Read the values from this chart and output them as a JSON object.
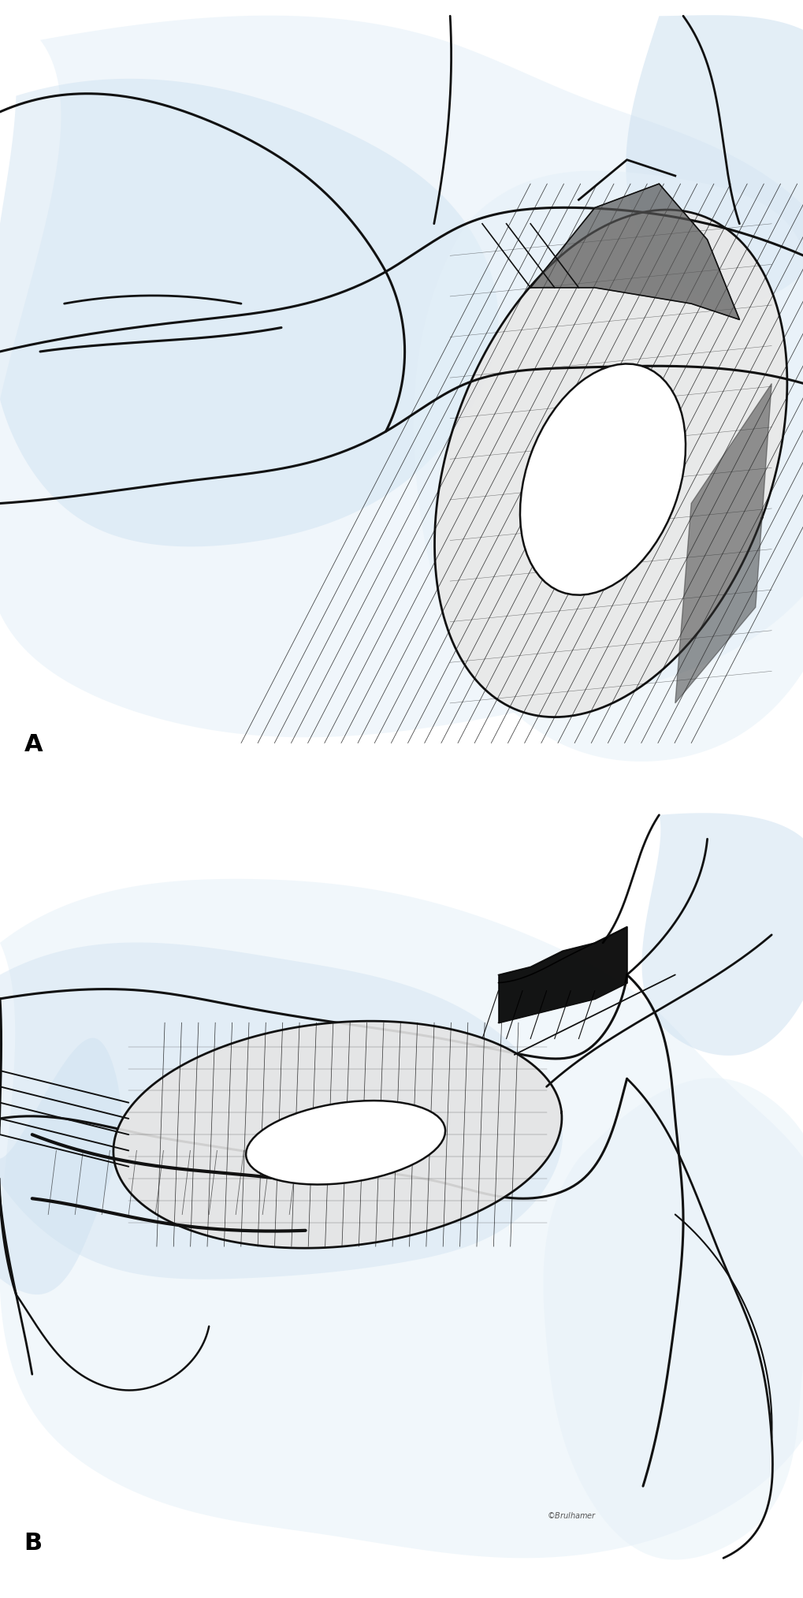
{
  "background_color": "#ffffff",
  "label_A": "A",
  "label_B": "B",
  "label_fontsize": 22,
  "label_fontweight": "bold",
  "fig_width": 10.2,
  "fig_height": 20.27,
  "blue_shade": "#cce0f0",
  "light_blue": "#e4f0f8",
  "line_color": "#111111",
  "dpi": 100
}
